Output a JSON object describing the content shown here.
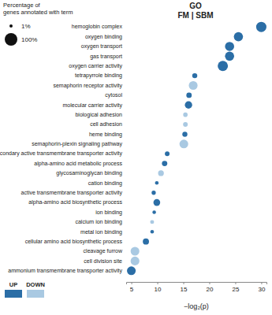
{
  "chart_data": {
    "type": "scatter",
    "title": "GO",
    "subtitle": "FM | SBM",
    "x_label": "−log₂(p)",
    "categories": [
      "hemoglobin complex",
      "oxygen binding",
      "oxygen transport",
      "gas transport",
      "oxygen carrier activity",
      "tetrapyrrole binding",
      "semaphorin receptor activity",
      "cytosol",
      "molecular carrier activity",
      "biological adhesion",
      "cell adhesion",
      "heme binding",
      "semaphorin-plexin signaling pathway",
      "secondary active transmembrane transporter activity",
      "alpha-amino acid metabolic process",
      "glycosaminoglycan binding",
      "cation binding",
      "active transmembrane transporter activity",
      "alpha-amino acid biosynthetic process",
      "ion binding",
      "calcium ion binding",
      "metal ion binding",
      "cellular amino acid biosynthetic process",
      "cleavage furrow",
      "cell division site",
      "ammonium transmembrane transporter activity"
    ],
    "series": [
      {
        "name": "UP",
        "color": "#2b6ea6",
        "values": [
          30.0,
          25.6,
          23.9,
          23.9,
          22.6,
          17.2,
          null,
          16.1,
          16.0,
          null,
          null,
          15.3,
          null,
          11.9,
          11.4,
          null,
          9.9,
          9.3,
          9.9,
          9.4,
          null,
          9.0,
          7.8,
          null,
          null,
          5.0
        ],
        "sizes": [
          60,
          45,
          45,
          45,
          60,
          8,
          null,
          10,
          25,
          null,
          null,
          8,
          null,
          6,
          10,
          null,
          2,
          4,
          20,
          2,
          null,
          2,
          15,
          null,
          null,
          40
        ]
      },
      {
        "name": "DOWN",
        "color": "#a9c9e2",
        "values": [
          null,
          null,
          null,
          null,
          null,
          null,
          16.9,
          null,
          null,
          15.4,
          15.4,
          null,
          15.1,
          null,
          null,
          10.7,
          null,
          null,
          null,
          null,
          9.0,
          null,
          null,
          5.7,
          5.7,
          null
        ],
        "sizes": [
          null,
          null,
          null,
          null,
          null,
          null,
          40,
          null,
          null,
          5,
          6,
          null,
          40,
          null,
          null,
          12,
          null,
          null,
          null,
          null,
          3,
          null,
          null,
          40,
          40,
          null
        ]
      }
    ],
    "size_legend": {
      "title": "Percentage of genes annotated with term",
      "values": [
        1,
        100
      ],
      "labels": [
        "1%",
        "100%"
      ]
    },
    "xlim": [
      4,
      31
    ],
    "xticks": [
      5,
      10,
      15,
      20,
      25,
      30
    ],
    "grid": false,
    "legend": "bottom-left"
  }
}
